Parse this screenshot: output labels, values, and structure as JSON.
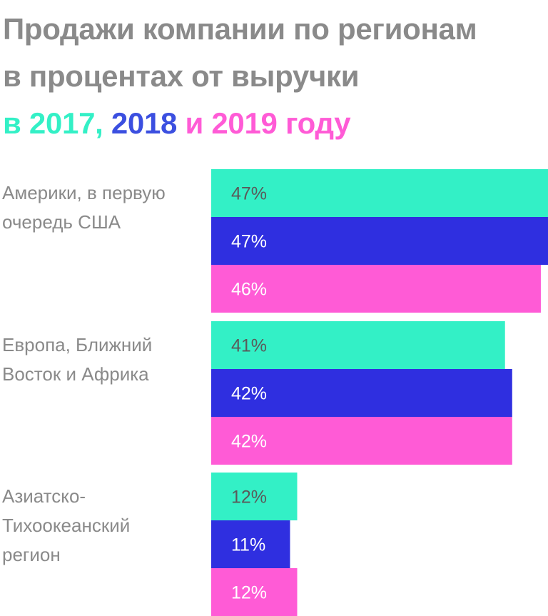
{
  "title": {
    "line1": "Продажи компании по регионам",
    "line2": "в процентах от выручки",
    "line3": {
      "prefix": "в ",
      "year1": "2017",
      "comma": ", ",
      "year2": "2018",
      "conj": " и ",
      "year3": "2019",
      "suffix": " году"
    }
  },
  "colors": {
    "title": "#8a8a8a",
    "s2017": "#33f0c6",
    "s2018": "#2f2fe0",
    "s2019": "#ff5bd6",
    "year2018_text": "#3b4fe0"
  },
  "chart_data": {
    "type": "bar",
    "orientation": "horizontal",
    "categories": [
      [
        "Америки, в первую",
        "очередь США"
      ],
      [
        "Европа, Ближний",
        "Восток и Африка"
      ],
      [
        "Азиатско-",
        "Тихоокеанский",
        "регион"
      ]
    ],
    "series": [
      {
        "name": "2017",
        "values": [
          47,
          41,
          12
        ],
        "labels": [
          "47%",
          "41%",
          "12%"
        ]
      },
      {
        "name": "2018",
        "values": [
          47,
          42,
          11
        ],
        "labels": [
          "47%",
          "42%",
          "11%"
        ]
      },
      {
        "name": "2019",
        "values": [
          46,
          42,
          12
        ],
        "labels": [
          "46%",
          "42%",
          "12%"
        ]
      }
    ],
    "xlim": [
      0,
      47
    ],
    "grid": false,
    "legend": "title"
  }
}
